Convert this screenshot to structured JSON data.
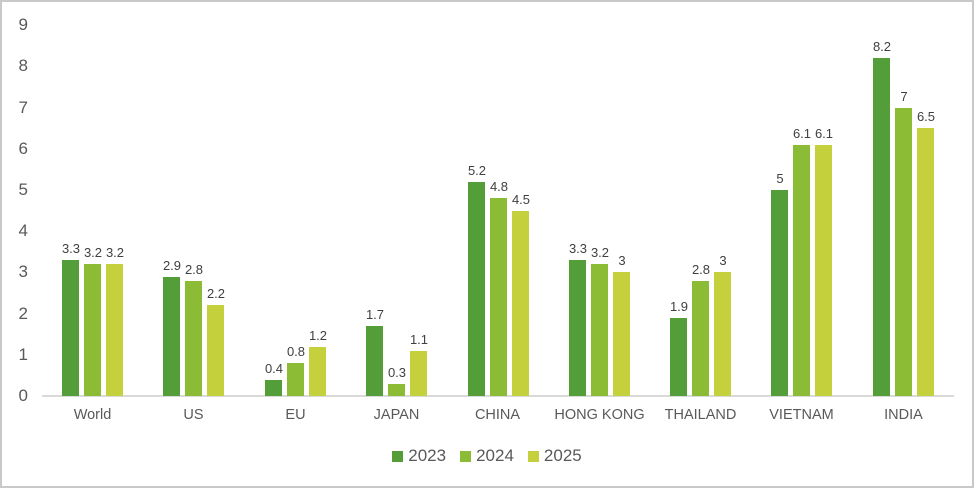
{
  "chart_data": {
    "type": "bar",
    "title": "",
    "xlabel": "",
    "ylabel": "",
    "categories": [
      "World",
      "US",
      "EU",
      "JAPAN",
      "CHINA",
      "HONG KONG",
      "THAILAND",
      "VIETNAM",
      "INDIA"
    ],
    "series": [
      {
        "name": "2023",
        "color": "#549E39",
        "values": [
          3.3,
          2.9,
          0.4,
          1.7,
          5.2,
          3.3,
          1.9,
          5,
          8.2
        ]
      },
      {
        "name": "2024",
        "color": "#8CBB35",
        "values": [
          3.2,
          2.8,
          0.8,
          0.3,
          4.8,
          3.2,
          2.8,
          6.1,
          7
        ]
      },
      {
        "name": "2025",
        "color": "#C5D13C",
        "values": [
          3.2,
          2.2,
          1.2,
          1.1,
          4.5,
          3,
          3,
          6.1,
          6.5
        ]
      }
    ],
    "y_ticks": [
      0,
      1,
      2,
      3,
      4,
      5,
      6,
      7,
      8,
      9
    ],
    "ylim": [
      0,
      9
    ],
    "grid": false,
    "data_labels": true,
    "legend_position": "bottom"
  },
  "colors": {
    "background": "#FFFFFF",
    "border": "#C9C9C9",
    "axis_line": "#D9D9D9",
    "tick_label": "#595959",
    "category_label": "#595959",
    "data_label": "#404040",
    "legend_label": "#595959"
  }
}
